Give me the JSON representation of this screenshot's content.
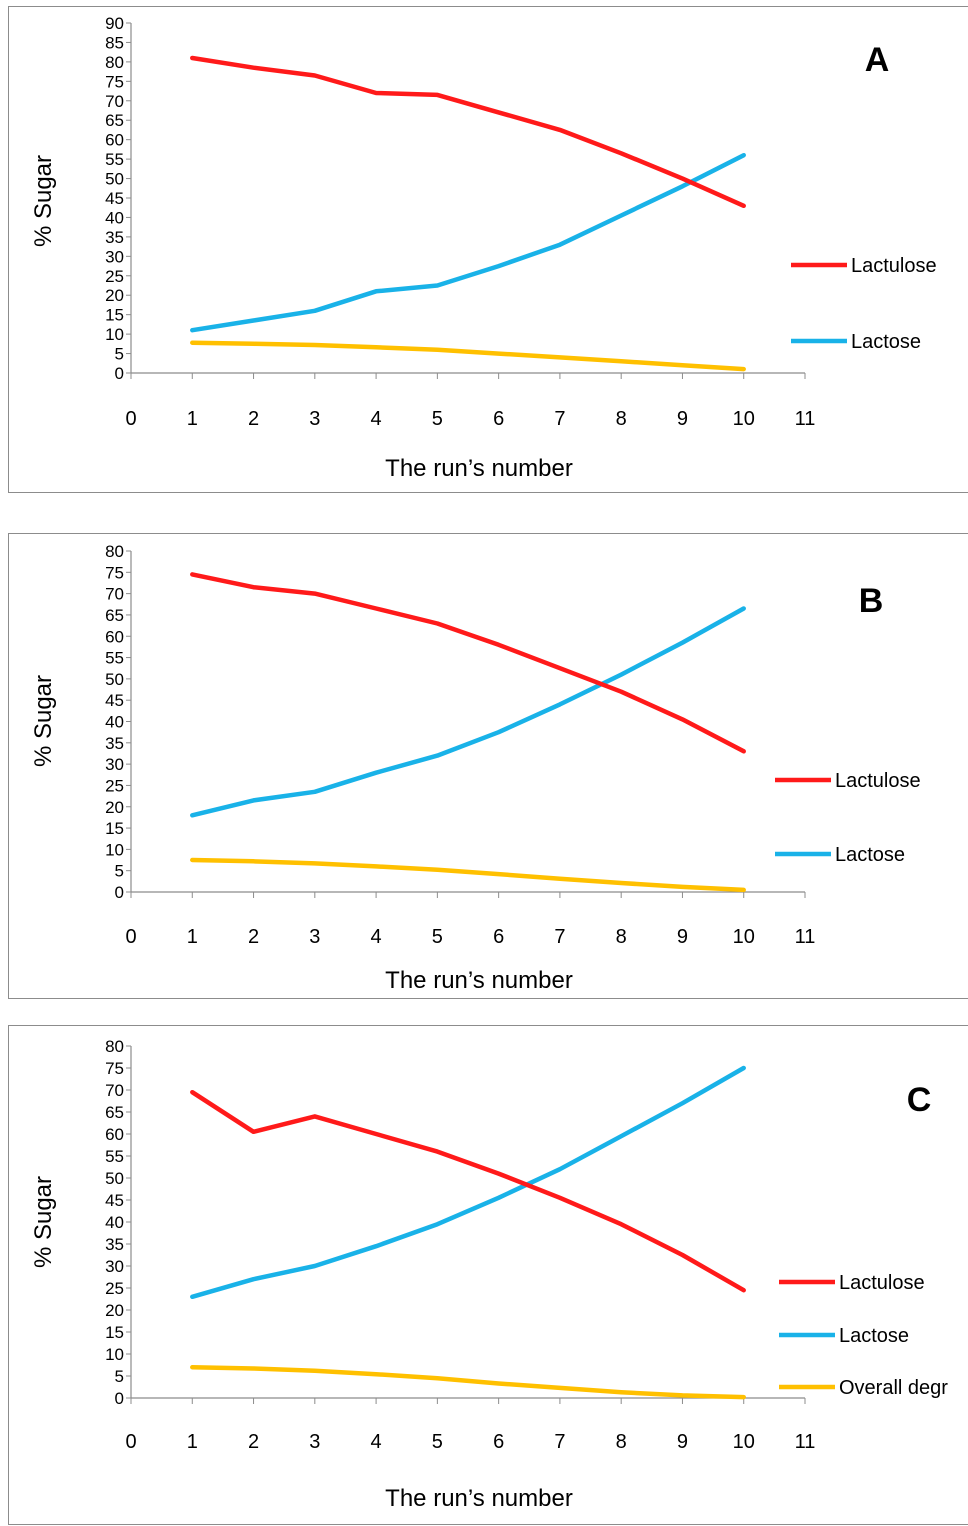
{
  "colors": {
    "lactulose": "#ff1a1a",
    "lactose": "#19b2e8",
    "overall": "#ffc000",
    "axis": "#8c8c8c"
  },
  "chart_data": [
    {
      "type": "line",
      "title": "A",
      "xlabel": "The run’s number",
      "ylabel": "% Sugar",
      "xlim": [
        0,
        11
      ],
      "ylim": [
        0,
        90
      ],
      "x_ticks": [
        "0",
        "1",
        "2",
        "3",
        "4",
        "5",
        "6",
        "7",
        "8",
        "9",
        "10",
        "11"
      ],
      "y_ticks": [
        "0",
        "5",
        "10",
        "15",
        "20",
        "25",
        "30",
        "35",
        "40",
        "45",
        "50",
        "55",
        "60",
        "65",
        "70",
        "75",
        "80",
        "85",
        "90"
      ],
      "grid": false,
      "legend_position": "right",
      "legend": [
        "Lactulose",
        "Lactose"
      ],
      "x": [
        1,
        2,
        3,
        4,
        5,
        6,
        7,
        8,
        9,
        10
      ],
      "series": [
        {
          "name": "Lactulose",
          "color": "#ff1a1a",
          "values": [
            81,
            78.5,
            76.5,
            72,
            71.5,
            67,
            62.5,
            56.5,
            50,
            43
          ]
        },
        {
          "name": "Lactose",
          "color": "#19b2e8",
          "values": [
            11,
            13.5,
            16,
            21,
            22.5,
            27.5,
            33,
            40.5,
            48,
            56
          ]
        },
        {
          "name": "",
          "color": "#ffc000",
          "values": [
            7.8,
            7.5,
            7.2,
            6.6,
            6,
            5,
            4,
            3,
            2,
            1
          ]
        }
      ]
    },
    {
      "type": "line",
      "title": "B",
      "xlabel": "The run’s number",
      "ylabel": "% Sugar",
      "xlim": [
        0,
        11
      ],
      "ylim": [
        0,
        80
      ],
      "x_ticks": [
        "0",
        "1",
        "2",
        "3",
        "4",
        "5",
        "6",
        "7",
        "8",
        "9",
        "10",
        "11"
      ],
      "y_ticks": [
        "0",
        "5",
        "10",
        "15",
        "20",
        "25",
        "30",
        "35",
        "40",
        "45",
        "50",
        "55",
        "60",
        "65",
        "70",
        "75",
        "80"
      ],
      "grid": false,
      "legend_position": "right",
      "legend": [
        "Lactulose",
        "Lactose"
      ],
      "x": [
        1,
        2,
        3,
        4,
        5,
        6,
        7,
        8,
        9,
        10
      ],
      "series": [
        {
          "name": "Lactulose",
          "color": "#ff1a1a",
          "values": [
            74.5,
            71.5,
            70,
            66.5,
            63,
            58,
            52.5,
            47,
            40.5,
            33
          ]
        },
        {
          "name": "Lactose",
          "color": "#19b2e8",
          "values": [
            18,
            21.5,
            23.5,
            28,
            32,
            37.5,
            44,
            51,
            58.5,
            66.5
          ]
        },
        {
          "name": "",
          "color": "#ffc000",
          "values": [
            7.5,
            7.2,
            6.7,
            6,
            5.2,
            4.2,
            3.1,
            2.1,
            1.2,
            0.5
          ]
        }
      ]
    },
    {
      "type": "line",
      "title": "C",
      "xlabel": "The run’s number",
      "ylabel": "% Sugar",
      "xlim": [
        0,
        11
      ],
      "ylim": [
        0,
        80
      ],
      "x_ticks": [
        "0",
        "1",
        "2",
        "3",
        "4",
        "5",
        "6",
        "7",
        "8",
        "9",
        "10",
        "11"
      ],
      "y_ticks": [
        "0",
        "5",
        "10",
        "15",
        "20",
        "25",
        "30",
        "35",
        "40",
        "45",
        "50",
        "55",
        "60",
        "65",
        "70",
        "75",
        "80"
      ],
      "grid": false,
      "legend_position": "right",
      "legend": [
        "Lactulose",
        "Lactose",
        "Overall degr"
      ],
      "x": [
        1,
        2,
        3,
        4,
        5,
        6,
        7,
        8,
        9,
        10
      ],
      "series": [
        {
          "name": "Lactulose",
          "color": "#ff1a1a",
          "values": [
            69.5,
            60.5,
            64,
            60,
            56,
            51,
            45.5,
            39.5,
            32.5,
            24.5
          ]
        },
        {
          "name": "Lactose",
          "color": "#19b2e8",
          "values": [
            23,
            27,
            30,
            34.5,
            39.5,
            45.5,
            52,
            59.5,
            67,
            75
          ]
        },
        {
          "name": "Overall degr",
          "color": "#ffc000",
          "values": [
            7,
            6.7,
            6.2,
            5.4,
            4.5,
            3.3,
            2.3,
            1.3,
            0.6,
            0.2
          ]
        }
      ]
    }
  ]
}
